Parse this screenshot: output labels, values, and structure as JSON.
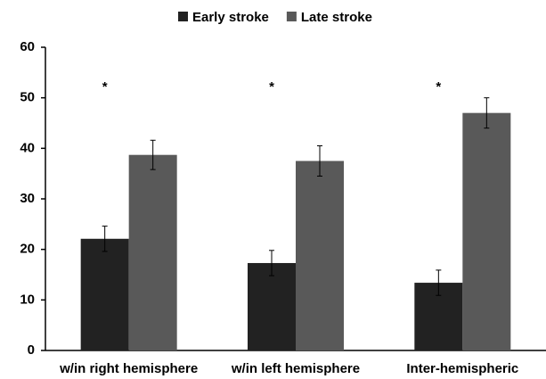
{
  "chart_data": {
    "type": "bar",
    "categories": [
      "w/in right hemisphere",
      "w/in left hemisphere",
      "Inter-hemispheric"
    ],
    "series": [
      {
        "name": "Early stroke",
        "color": "#222222",
        "values": [
          22.1,
          17.3,
          13.4
        ],
        "errors": [
          2.5,
          2.5,
          2.5
        ]
      },
      {
        "name": "Late stroke",
        "color": "#595959",
        "values": [
          38.7,
          37.5,
          47.0
        ],
        "errors": [
          2.9,
          3.0,
          3.0
        ]
      }
    ],
    "annotations": [
      "*",
      "*",
      "*"
    ],
    "ylim": [
      0,
      60
    ],
    "yticks": [
      0,
      10,
      20,
      30,
      40,
      50,
      60
    ],
    "grid": false,
    "legend": "top"
  }
}
